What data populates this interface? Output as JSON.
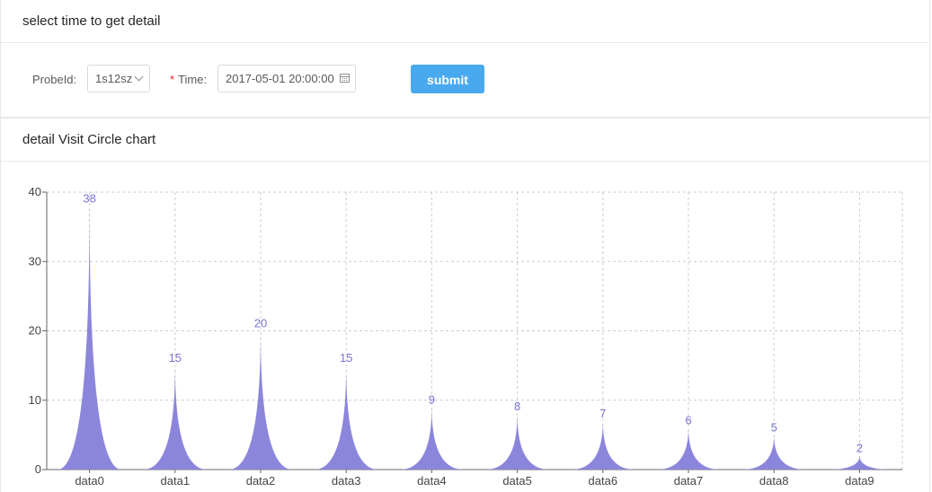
{
  "top_card": {
    "title": "select time to get detail",
    "probe_label": "ProbeId",
    "probe_value": "1s12sz",
    "time_label": "Time",
    "time_required_mark": "*",
    "time_value": "2017-05-01 20:00:00",
    "submit_label": "submit"
  },
  "chart_card": {
    "title": "detail Visit Circle chart"
  },
  "chart_data": {
    "type": "area",
    "categories": [
      "data0",
      "data1",
      "data2",
      "data3",
      "data4",
      "data5",
      "data6",
      "data7",
      "data8",
      "data9"
    ],
    "values": [
      38,
      15,
      20,
      15,
      9,
      8,
      7,
      6,
      5,
      2
    ],
    "ylim": [
      0,
      40
    ],
    "yticks": [
      0,
      10,
      20,
      30,
      40
    ],
    "grid": true,
    "color": "#8b86db",
    "label_color": "#7b74d6"
  }
}
